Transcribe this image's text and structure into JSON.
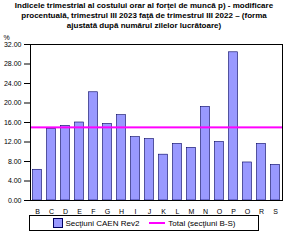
{
  "chart_data": {
    "type": "bar",
    "title": "Indicele trimestrial al costului orar al forţei de muncă p) - modificare procentuală, trimestrul III 2023 faţă de trimestrul III 2022 – (forma ajustată după numărul zilelor lucrătoare)",
    "y_label": "%",
    "categories": [
      "B",
      "C",
      "D",
      "E",
      "F",
      "G",
      "H",
      "I",
      "J",
      "K",
      "L",
      "M",
      "N",
      "O",
      "P",
      "Q",
      "R",
      "S"
    ],
    "series": [
      {
        "name": "Secţiuni CAEN Rev2",
        "type": "bar",
        "color": "#9999ff",
        "values": [
          6.3,
          14.7,
          15.3,
          16.0,
          22.2,
          15.7,
          17.5,
          13.0,
          12.6,
          9.4,
          11.6,
          10.8,
          19.2,
          12.0,
          30.4,
          7.8,
          11.6,
          7.3
        ]
      },
      {
        "name": "Total (secţiuni B-S)",
        "type": "line",
        "color": "#ff00ff",
        "values": [
          15.0,
          15.0,
          15.0,
          15.0,
          15.0,
          15.0,
          15.0,
          15.0,
          15.0,
          15.0,
          15.0,
          15.0,
          15.0,
          15.0,
          15.0,
          15.0,
          15.0,
          15.0
        ]
      }
    ],
    "ylim": [
      0,
      32
    ],
    "yticks": [
      {
        "value": 0,
        "label": "0.00"
      },
      {
        "value": 4,
        "label": "4.00"
      },
      {
        "value": 8,
        "label": "8.00"
      },
      {
        "value": 12,
        "label": "12.00"
      },
      {
        "value": 16,
        "label": "16.00"
      },
      {
        "value": 20,
        "label": "20.00"
      },
      {
        "value": 24,
        "label": "24.00"
      },
      {
        "value": 28,
        "label": "28.00"
      },
      {
        "value": 32,
        "label": "32.00"
      }
    ],
    "grid": false,
    "legend": "bottom"
  }
}
